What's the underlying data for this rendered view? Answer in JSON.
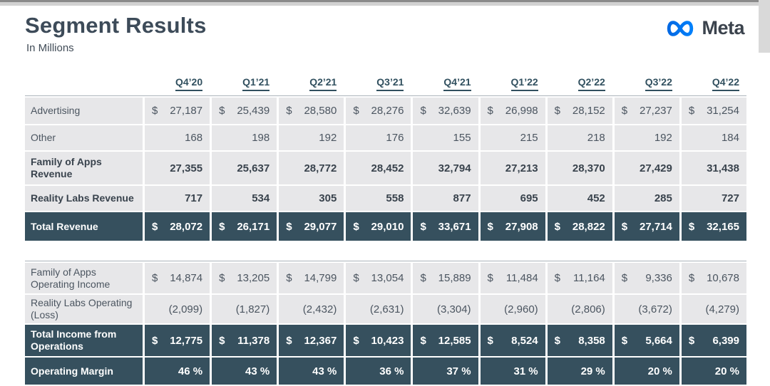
{
  "page": {
    "title": "Segment Results",
    "subtitle": "In Millions",
    "brand": "Meta"
  },
  "colors": {
    "dark_row_bg": "#36505e",
    "light_cell_bg": "#e7e7e9",
    "header_text": "#31505f",
    "meta_blue_start": "#0269e3",
    "meta_blue_end": "#0080fb"
  },
  "columns": [
    "Q4’20",
    "Q1’21",
    "Q2’21",
    "Q3’21",
    "Q4’21",
    "Q1’22",
    "Q2’22",
    "Q3’22",
    "Q4’22"
  ],
  "revenue_table": {
    "rows": [
      {
        "label": "Advertising",
        "style": "normal",
        "dollar": true,
        "values": [
          "27,187",
          "25,439",
          "28,580",
          "28,276",
          "32,639",
          "26,998",
          "28,152",
          "27,237",
          "31,254"
        ]
      },
      {
        "label": "Other",
        "style": "normal",
        "dollar": false,
        "values": [
          "168",
          "198",
          "192",
          "176",
          "155",
          "215",
          "218",
          "192",
          "184"
        ]
      },
      {
        "label": "Family of Apps Revenue",
        "style": "bold",
        "dollar": false,
        "values": [
          "27,355",
          "25,637",
          "28,772",
          "28,452",
          "32,794",
          "27,213",
          "28,370",
          "27,429",
          "31,438"
        ]
      },
      {
        "label": "Reality Labs Revenue",
        "style": "bold",
        "dollar": false,
        "values": [
          "717",
          "534",
          "305",
          "558",
          "877",
          "695",
          "452",
          "285",
          "727"
        ]
      },
      {
        "label": "Total Revenue",
        "style": "dark",
        "dollar": true,
        "values": [
          "28,072",
          "26,171",
          "29,077",
          "29,010",
          "33,671",
          "27,908",
          "28,822",
          "27,714",
          "32,165"
        ]
      }
    ]
  },
  "income_table": {
    "rows": [
      {
        "label": "Family of Apps Operating Income",
        "style": "normal",
        "dollar": true,
        "values": [
          "14,874",
          "13,205",
          "14,799",
          "13,054",
          "15,889",
          "11,484",
          "11,164",
          "9,336",
          "10,678"
        ]
      },
      {
        "label": "Reality Labs Operating (Loss)",
        "style": "normal",
        "dollar": false,
        "values": [
          "(2,099)",
          "(1,827)",
          "(2,432)",
          "(2,631)",
          "(3,304)",
          "(2,960)",
          "(2,806)",
          "(3,672)",
          "(4,279)"
        ]
      },
      {
        "label": "Total Income from Operations",
        "style": "dark",
        "dollar": true,
        "values": [
          "12,775",
          "11,378",
          "12,367",
          "10,423",
          "12,585",
          "8,524",
          "8,358",
          "5,664",
          "6,399"
        ]
      },
      {
        "label": "Operating Margin",
        "style": "dark",
        "dollar": false,
        "values": [
          "46 %",
          "43 %",
          "43 %",
          "36 %",
          "37 %",
          "31 %",
          "29 %",
          "20 %",
          "20 %"
        ]
      }
    ]
  }
}
